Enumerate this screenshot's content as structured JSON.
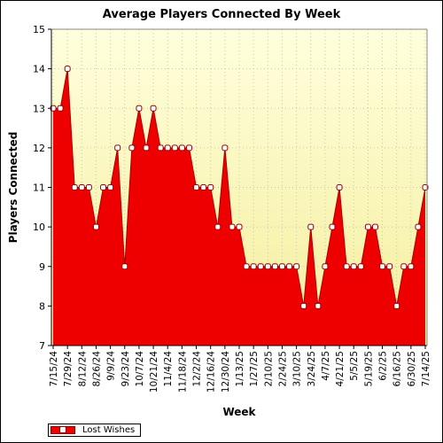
{
  "chart_data": {
    "type": "area",
    "title": "Average Players Connected By Week",
    "xlabel": "Week",
    "ylabel": "Players Connected",
    "ylim": [
      7,
      15
    ],
    "yticks": [
      7,
      8,
      9,
      10,
      11,
      12,
      13,
      14,
      15
    ],
    "grid": true,
    "legend_position": "bottom-left",
    "colors": {
      "fill": "#ee0000",
      "line": "#aa0000",
      "marker_fill": "#ffffff",
      "marker_stroke": "#990000",
      "background_top": "#ffffdd",
      "background_bottom": "#f4ee9c"
    },
    "tick_labels": [
      "7/15/24",
      "7/29/24",
      "8/12/24",
      "8/26/24",
      "9/9/24",
      "9/23/24",
      "10/7/24",
      "10/21/24",
      "11/4/24",
      "11/18/24",
      "12/2/24",
      "12/16/24",
      "12/30/24",
      "1/13/25",
      "1/27/25",
      "2/10/25",
      "2/24/25",
      "3/10/25",
      "3/24/25",
      "4/7/25",
      "4/21/25",
      "5/5/25",
      "5/19/25",
      "6/2/25",
      "6/16/25",
      "6/30/25",
      "7/14/25"
    ],
    "series": [
      {
        "name": "Lost Wishes",
        "values": [
          13,
          13,
          14,
          11,
          11,
          11,
          10,
          11,
          11,
          12,
          9,
          12,
          13,
          12,
          13,
          12,
          12,
          12,
          12,
          12,
          11,
          11,
          11,
          10,
          12,
          10,
          10,
          9,
          9,
          9,
          9,
          9,
          9,
          9,
          9,
          8,
          10,
          8,
          9,
          10,
          11,
          9,
          9,
          9,
          10,
          10,
          9,
          9,
          8,
          9,
          9,
          10,
          11
        ]
      }
    ]
  }
}
